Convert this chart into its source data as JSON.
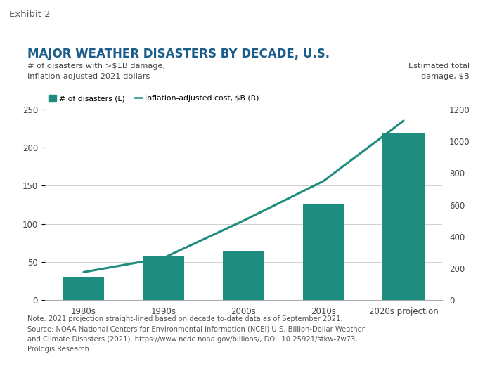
{
  "title": "MAJOR WEATHER DISASTERS BY DECADE, U.S.",
  "exhibit_label": "Exhibit 2",
  "left_subtitle": "# of disasters with >$1B damage,\ninflation-adjusted 2021 dollars",
  "right_subtitle": "Estimated total\ndamage, $B",
  "categories": [
    "1980s",
    "1990s",
    "2000s",
    "2010s",
    "2020s projection"
  ],
  "bar_values": [
    30,
    57,
    65,
    126,
    219
  ],
  "line_values": [
    175,
    265,
    500,
    750,
    1130
  ],
  "bar_color": "#1e8c7e",
  "line_color": "#1e8c7e",
  "left_ylim": [
    0,
    250
  ],
  "right_ylim": [
    0,
    1200
  ],
  "left_yticks": [
    0,
    50,
    100,
    150,
    200,
    250
  ],
  "right_yticks": [
    0,
    200,
    400,
    600,
    800,
    1000,
    1200
  ],
  "legend_bar_label": "# of disasters (L)",
  "legend_line_label": "Inflation-adjusted cost, $B (R)",
  "note_text": "Note: 2021 projection straight-lined based on decade to-date data as of September 2021.\nSource: NOAA National Centers for Environmental Information (NCEI) U.S. Billion-Dollar Weather\nand Climate Disasters (2021). https://www.ncdc.noaa.gov/billions/, DOI: 10.25921/stkw-7w73,\nPrologis Research.",
  "bg_color": "#ffffff",
  "header_bg_color": "#e2e2e2",
  "grid_color": "#d0d0d0",
  "title_color": "#1a5c8a",
  "exhibit_color": "#555555",
  "subtitle_color": "#444444",
  "note_color": "#555555",
  "tick_color": "#444444"
}
